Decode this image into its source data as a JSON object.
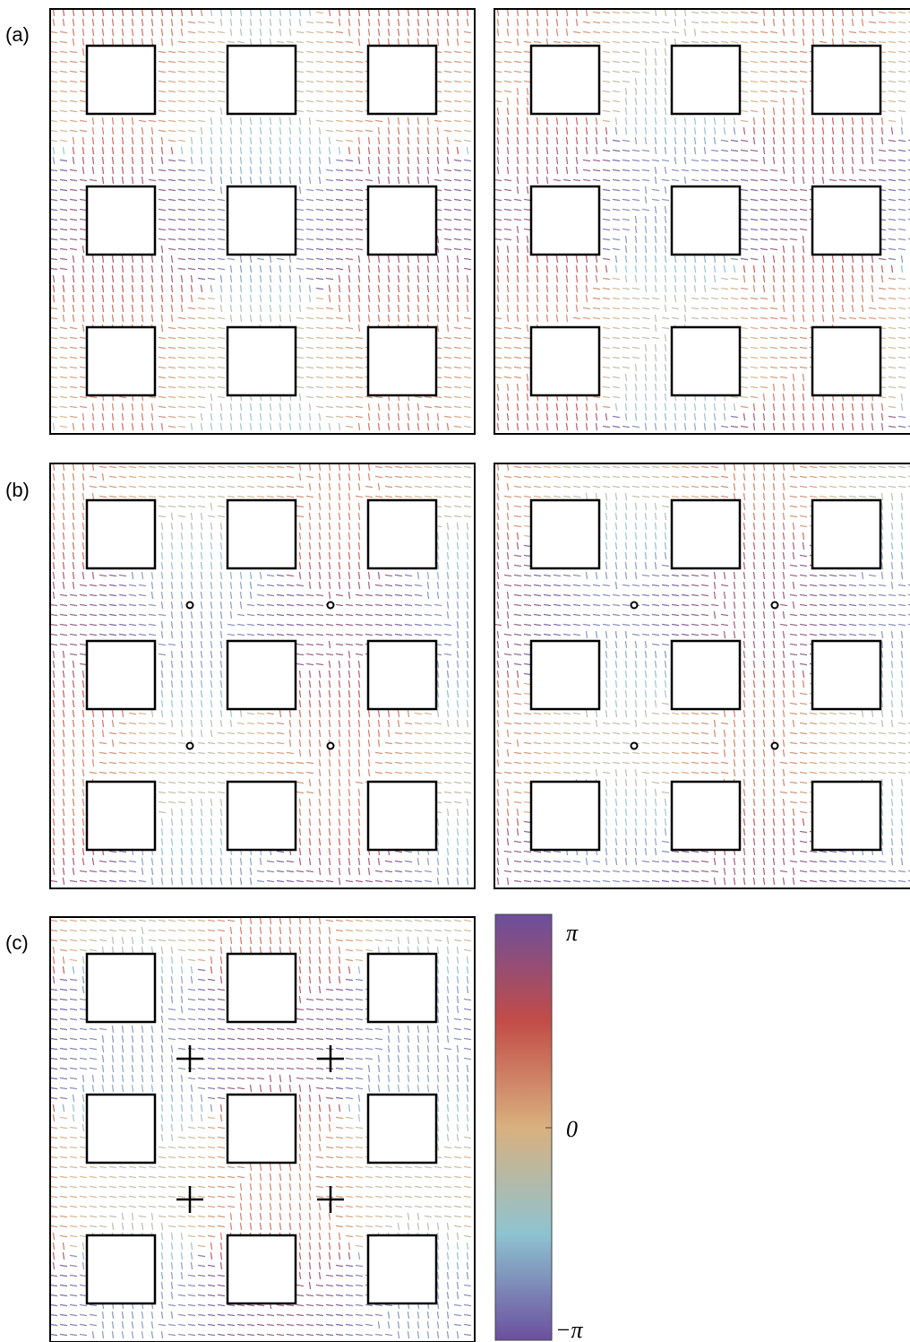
{
  "panels": [
    {
      "label": "(a)"
    },
    {
      "label": "(b)"
    },
    {
      "label": "(c)"
    }
  ],
  "colorbar": {
    "labels": [
      "π",
      "0",
      "−π"
    ]
  }
}
